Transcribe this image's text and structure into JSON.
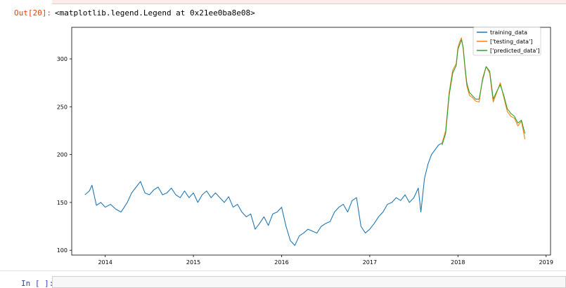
{
  "output_cell": {
    "prompt": "Out[20]:",
    "text": "<matplotlib.legend.Legend at 0x21ee0ba8e08>"
  },
  "input_cell": {
    "prompt": "In [ ]:",
    "value": ""
  },
  "chart_data": {
    "type": "line",
    "x_ticks": [
      "2014",
      "2015",
      "2016",
      "2017",
      "2018",
      "2019"
    ],
    "y_ticks": [
      100,
      150,
      200,
      250,
      300
    ],
    "xlim": [
      2013.62,
      2019.05
    ],
    "ylim": [
      95,
      333
    ],
    "legend_position": "top-right",
    "series": [
      {
        "name": "training_data",
        "color": "#1f77b4",
        "x": [
          2013.77,
          2013.82,
          2013.85,
          2013.9,
          2013.95,
          2014.0,
          2014.06,
          2014.12,
          2014.18,
          2014.25,
          2014.3,
          2014.35,
          2014.4,
          2014.45,
          2014.5,
          2014.55,
          2014.6,
          2014.65,
          2014.7,
          2014.75,
          2014.8,
          2014.85,
          2014.9,
          2014.95,
          2015.0,
          2015.05,
          2015.1,
          2015.15,
          2015.2,
          2015.25,
          2015.3,
          2015.35,
          2015.4,
          2015.45,
          2015.5,
          2015.55,
          2015.6,
          2015.65,
          2015.7,
          2015.75,
          2015.8,
          2015.85,
          2015.9,
          2015.95,
          2016.0,
          2016.05,
          2016.1,
          2016.15,
          2016.2,
          2016.25,
          2016.3,
          2016.35,
          2016.4,
          2016.45,
          2016.5,
          2016.55,
          2016.6,
          2016.65,
          2016.7,
          2016.75,
          2016.8,
          2016.85,
          2016.9,
          2016.95,
          2017.0,
          2017.05,
          2017.1,
          2017.15,
          2017.2,
          2017.25,
          2017.3,
          2017.35,
          2017.4,
          2017.45,
          2017.5,
          2017.55,
          2017.58,
          2017.62,
          2017.66,
          2017.7,
          2017.74,
          2017.78,
          2017.82
        ],
        "values": [
          158,
          162,
          168,
          147,
          150,
          145,
          148,
          143,
          140,
          150,
          160,
          166,
          172,
          160,
          158,
          163,
          166,
          158,
          160,
          165,
          158,
          155,
          162,
          155,
          160,
          150,
          158,
          162,
          155,
          160,
          155,
          150,
          156,
          145,
          148,
          140,
          135,
          138,
          122,
          128,
          135,
          126,
          138,
          140,
          145,
          125,
          110,
          105,
          115,
          118,
          122,
          120,
          118,
          125,
          128,
          130,
          140,
          145,
          148,
          140,
          152,
          155,
          125,
          118,
          122,
          128,
          135,
          140,
          148,
          150,
          155,
          152,
          158,
          150,
          155,
          165,
          140,
          175,
          190,
          200,
          205,
          210,
          212
        ]
      },
      {
        "name": "['testing_data']",
        "color": "#ff7f0e",
        "x": [
          2017.82,
          2017.86,
          2017.9,
          2017.94,
          2017.98,
          2018.0,
          2018.02,
          2018.04,
          2018.06,
          2018.08,
          2018.1,
          2018.13,
          2018.16,
          2018.2,
          2018.24,
          2018.28,
          2018.32,
          2018.36,
          2018.4,
          2018.44,
          2018.48,
          2018.52,
          2018.56,
          2018.6,
          2018.64,
          2018.68,
          2018.72,
          2018.76
        ],
        "values": [
          212,
          225,
          265,
          288,
          295,
          312,
          318,
          322,
          310,
          290,
          272,
          262,
          260,
          256,
          255,
          280,
          292,
          285,
          255,
          265,
          275,
          260,
          245,
          240,
          238,
          230,
          235,
          216
        ]
      },
      {
        "name": "['predicted_data']",
        "color": "#2ca02c",
        "x": [
          2017.82,
          2017.86,
          2017.9,
          2017.94,
          2017.98,
          2018.0,
          2018.02,
          2018.04,
          2018.06,
          2018.08,
          2018.1,
          2018.13,
          2018.16,
          2018.2,
          2018.24,
          2018.28,
          2018.32,
          2018.36,
          2018.4,
          2018.44,
          2018.48,
          2018.52,
          2018.56,
          2018.6,
          2018.64,
          2018.68,
          2018.72,
          2018.76
        ],
        "values": [
          210,
          222,
          262,
          285,
          293,
          310,
          315,
          320,
          312,
          292,
          275,
          265,
          262,
          258,
          258,
          278,
          292,
          287,
          258,
          266,
          273,
          262,
          248,
          243,
          240,
          233,
          236,
          222
        ]
      }
    ]
  }
}
